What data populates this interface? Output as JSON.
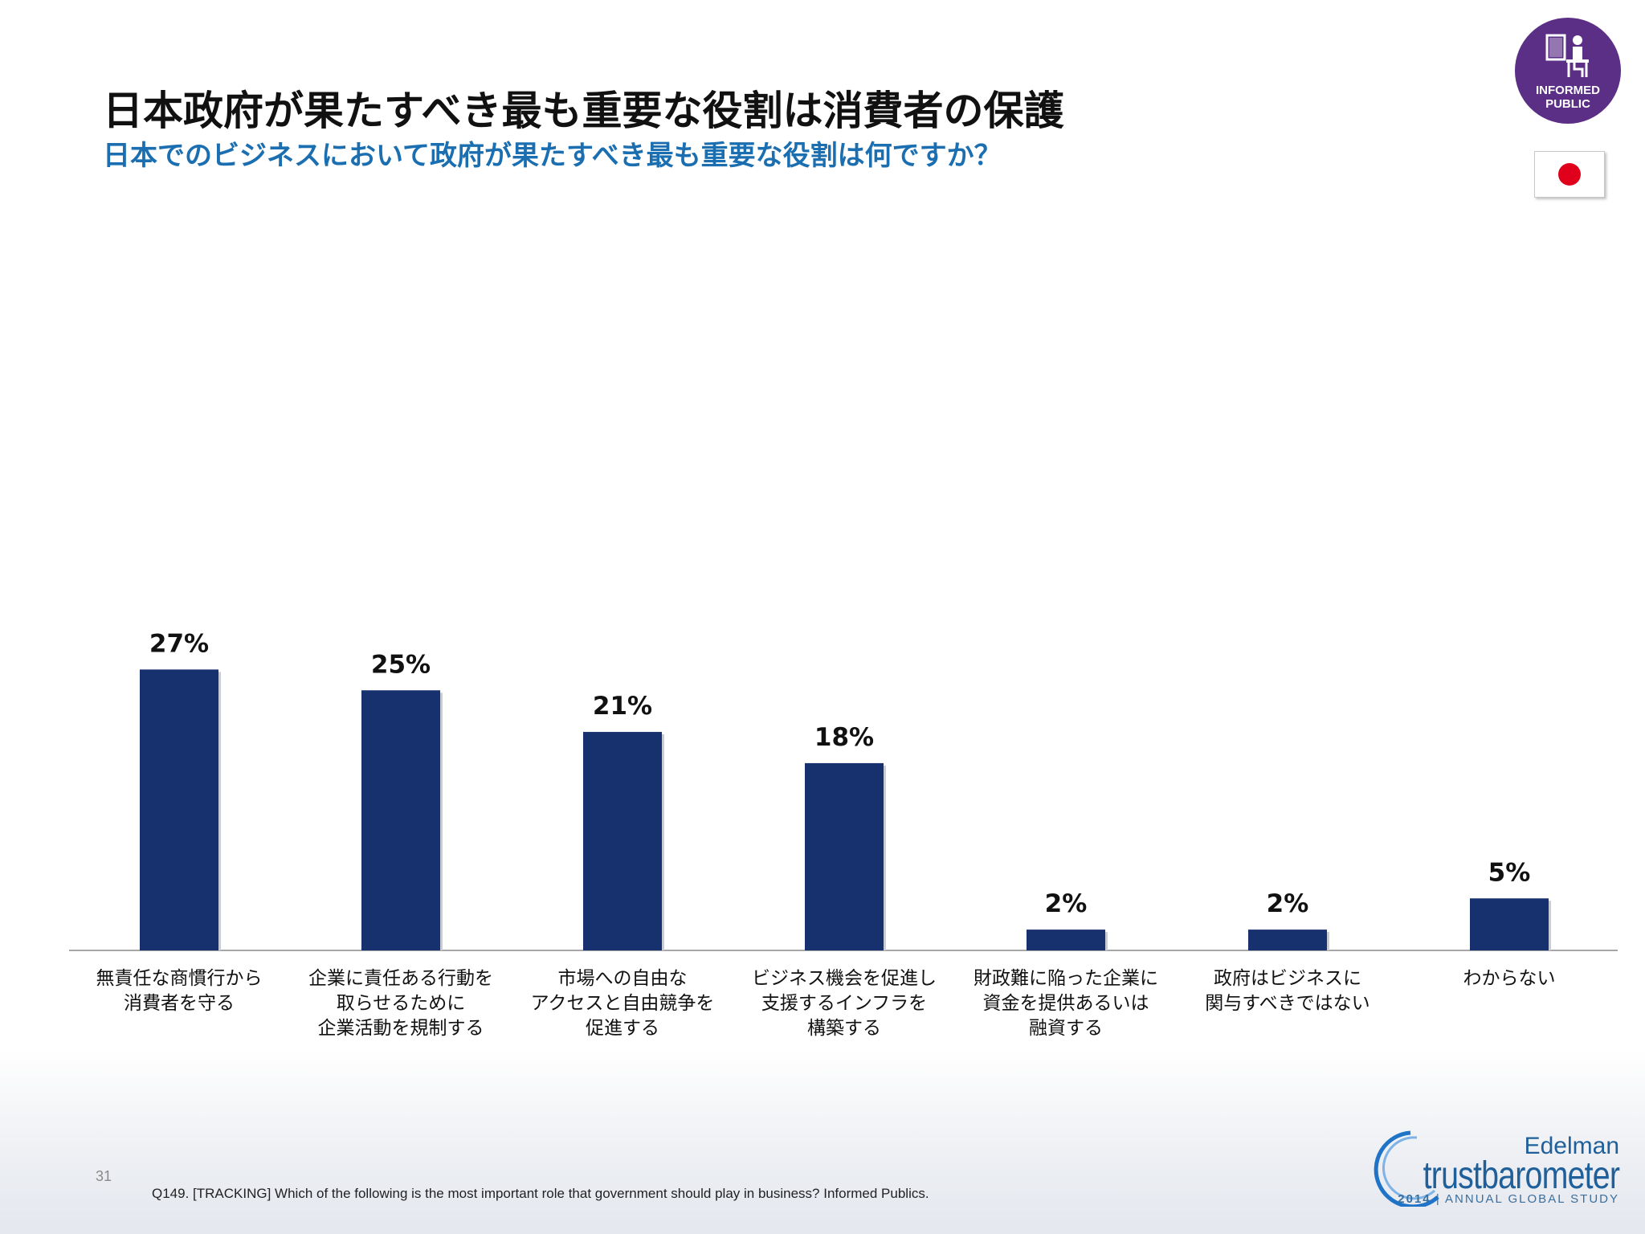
{
  "header": {
    "title": "日本政府が果たすべき最も重要な役割は消費者の保護",
    "subtitle": "日本でのビジネスにおいて政府が果たすべき最も重要な役割は何ですか？"
  },
  "badge": {
    "text_line1": "INFORMED",
    "text_line2": "PUBLIC",
    "color": "#5b2f86"
  },
  "flag": {
    "country": "Japan",
    "disc_color": "#e0001b"
  },
  "chart_data": {
    "type": "bar",
    "title": "",
    "xlabel": "",
    "ylabel": "",
    "ylim": [
      0,
      100
    ],
    "grid": false,
    "bar_color": "#17306e",
    "categories": [
      [
        "無責任な商慣行から",
        "消費者を守る"
      ],
      [
        "企業に責任ある行動を",
        "取らせるために",
        "企業活動を規制する"
      ],
      [
        "市場への自由な",
        "アクセスと自由競争を",
        "促進する"
      ],
      [
        "ビジネス機会を促進し",
        "支援するインフラを",
        "構築する"
      ],
      [
        "財政難に陥った企業に",
        "資金を提供あるいは",
        "融資する"
      ],
      [
        "政府はビジネスに",
        "関与すべきではない"
      ],
      [
        "わからない"
      ]
    ],
    "values": [
      27,
      25,
      21,
      18,
      2,
      2,
      5
    ],
    "value_labels": [
      "27%",
      "25%",
      "21%",
      "18%",
      "2%",
      "2%",
      "5%"
    ]
  },
  "footer": {
    "page_number": "31",
    "footnote": "Q149. [TRACKING] Which of the following is the most important role that government should play in business? Informed Publics.",
    "brand_company": "Edelman",
    "brand_name": "trustbarometer",
    "brand_year": "2014",
    "brand_tagline": "| ANNUAL GLOBAL STUDY"
  }
}
